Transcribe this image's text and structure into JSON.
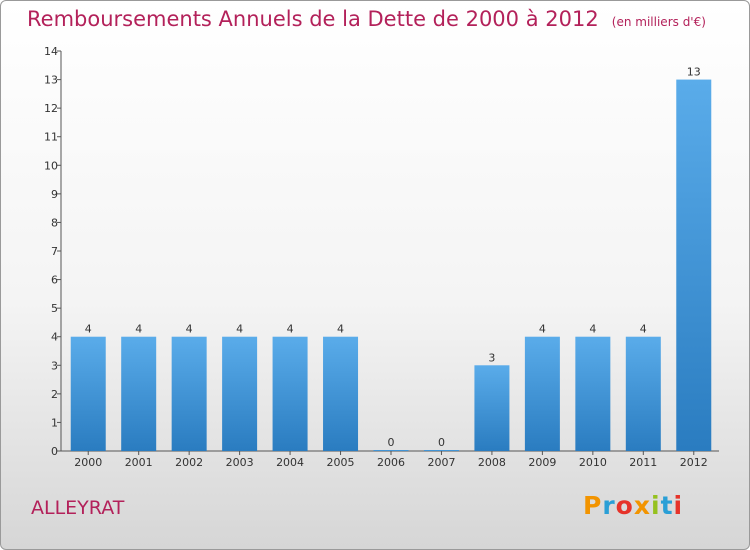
{
  "title": "Remboursements Annuels de la Dette de 2000 à 2012",
  "unit": "(en milliers d'€)",
  "place": "ALLEYRAT",
  "logo": {
    "letters": [
      "P",
      "r",
      "o",
      "x",
      "i",
      "t",
      "i"
    ],
    "colors": [
      "#f29400",
      "#2a9fd6",
      "#e6332a",
      "#f29400",
      "#95c11f",
      "#2a9fd6",
      "#e6332a"
    ]
  },
  "colors": {
    "bar_light": "#5aacea",
    "bar_dark": "#2a7cc0",
    "title": "#b3215a"
  },
  "chart_data": {
    "type": "bar",
    "categories": [
      "2000",
      "2001",
      "2002",
      "2003",
      "2004",
      "2005",
      "2006",
      "2007",
      "2008",
      "2009",
      "2010",
      "2011",
      "2012"
    ],
    "values": [
      4,
      4,
      4,
      4,
      4,
      4,
      0,
      0,
      3,
      4,
      4,
      4,
      13
    ],
    "value_labels": [
      "4",
      "4",
      "4",
      "4",
      "4",
      "4",
      "0",
      "0",
      "3",
      "4",
      "4",
      "4",
      "13"
    ],
    "y_ticks": [
      0,
      1,
      2,
      3,
      4,
      5,
      6,
      7,
      8,
      9,
      10,
      11,
      12,
      13,
      14
    ],
    "ylim": [
      0,
      14
    ],
    "grid": false
  }
}
